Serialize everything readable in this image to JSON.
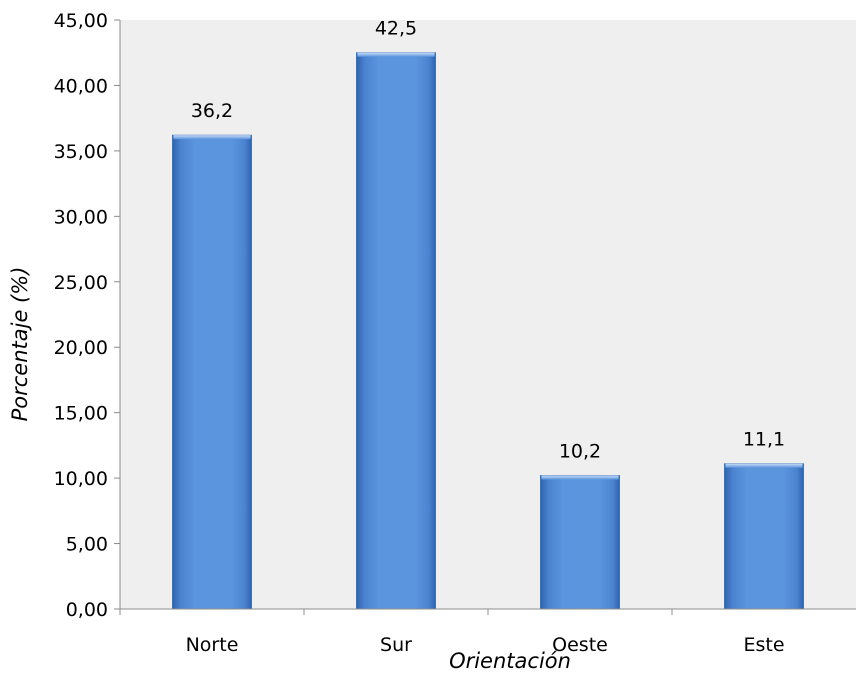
{
  "chart_data": {
    "type": "bar",
    "title": "",
    "xlabel": "Orientación",
    "ylabel": "Porcentaje (%)",
    "categories": [
      "Norte",
      "Sur",
      "Oeste",
      "Este"
    ],
    "values": [
      36.2,
      42.5,
      10.2,
      11.1
    ],
    "value_labels": [
      "36,2",
      "42,5",
      "10,2",
      "11,1"
    ],
    "ylim": [
      0,
      45
    ],
    "yticks": [
      0,
      5,
      10,
      15,
      20,
      25,
      30,
      35,
      40,
      45
    ],
    "ytick_labels": [
      "0,00",
      "5,00",
      "10,00",
      "15,00",
      "20,00",
      "25,00",
      "30,00",
      "35,00",
      "40,00",
      "45,00"
    ],
    "grid": false,
    "legend": "none",
    "colors": {
      "plot_area": "#efefef",
      "bar_main": "#5b95de",
      "bar_dark": "#2e63ad",
      "bar_light": "#a9c9f2",
      "axis": "#8c8c8c"
    }
  }
}
